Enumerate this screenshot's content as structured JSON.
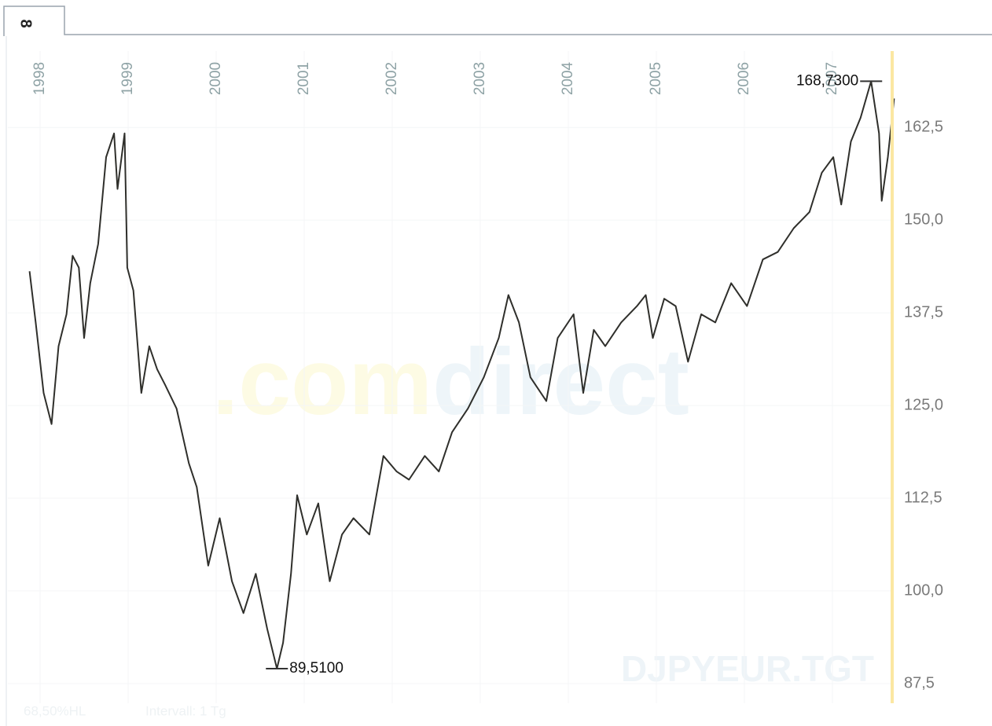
{
  "tab_label": "8",
  "chart_data": {
    "type": "line",
    "color": "#2f2f2b",
    "x": [
      1997.88,
      1997.95,
      1998.04,
      1998.13,
      1998.21,
      1998.3,
      1998.37,
      1998.44,
      1998.5,
      1998.57,
      1998.66,
      1998.75,
      1998.84,
      1998.88,
      1998.96,
      1998.99,
      1999.06,
      1999.15,
      1999.24,
      1999.33,
      1999.42,
      1999.55,
      1999.69,
      1999.78,
      1999.91,
      2000.04,
      2000.18,
      2000.31,
      2000.45,
      2000.58,
      2000.69,
      2000.76,
      2000.85,
      2000.92,
      2001.03,
      2001.16,
      2001.29,
      2001.43,
      2001.56,
      2001.74,
      2001.9,
      2002.05,
      2002.19,
      2002.37,
      2002.53,
      2002.68,
      2002.86,
      2003.04,
      2003.21,
      2003.32,
      2003.44,
      2003.57,
      2003.75,
      2003.88,
      2004.06,
      2004.17,
      2004.29,
      2004.42,
      2004.6,
      2004.78,
      2004.88,
      2004.96,
      2005.09,
      2005.22,
      2005.36,
      2005.51,
      2005.67,
      2005.85,
      2006.03,
      2006.21,
      2006.38,
      2006.56,
      2006.74,
      2006.88,
      2007.01,
      2007.1,
      2007.21,
      2007.32,
      2007.44,
      2007.53,
      2007.56,
      2007.63,
      2007.7
    ],
    "values": [
      143.1,
      136.2,
      126.7,
      122.5,
      133.0,
      137.3,
      145.2,
      143.6,
      134.1,
      141.5,
      146.8,
      158.5,
      161.7,
      154.2,
      161.7,
      143.6,
      140.5,
      126.7,
      133.0,
      129.9,
      127.8,
      124.6,
      117.2,
      114.0,
      103.4,
      109.8,
      101.3,
      97.0,
      102.3,
      94.9,
      89.51,
      93.0,
      102.3,
      112.9,
      107.6,
      111.8,
      101.3,
      107.6,
      109.8,
      107.6,
      118.2,
      116.1,
      115.0,
      118.2,
      116.1,
      121.4,
      124.6,
      128.8,
      134.1,
      139.9,
      136.2,
      128.8,
      125.6,
      134.1,
      137.3,
      126.7,
      135.2,
      133.0,
      136.2,
      138.4,
      139.9,
      134.1,
      139.4,
      138.4,
      130.9,
      137.3,
      136.2,
      141.5,
      138.4,
      144.7,
      145.7,
      148.9,
      151.1,
      156.4,
      158.5,
      152.1,
      160.6,
      163.8,
      168.73,
      161.7,
      152.6,
      158.5,
      166.4
    ],
    "xlim": [
      1997.634,
      2007.679
    ],
    "xticks": [
      1998,
      1999,
      2000,
      2001,
      2002,
      2003,
      2004,
      2005,
      2006,
      2007
    ],
    "ylim": [
      84.85,
      172.8
    ],
    "yticks": [
      {
        "value": 87.5,
        "label": "87,5"
      },
      {
        "value": 100,
        "label": "100,0"
      },
      {
        "value": 112.5,
        "label": "112,5"
      },
      {
        "value": 125,
        "label": "125,0"
      },
      {
        "value": 137.5,
        "label": "137,5"
      },
      {
        "value": 150,
        "label": "150,0"
      },
      {
        "value": 162.5,
        "label": "162,5"
      }
    ],
    "grid": true,
    "annotations": [
      {
        "x": 2007.44,
        "value": 168.73,
        "label": "168,7300",
        "side": "left"
      },
      {
        "x": 2000.69,
        "value": 89.51,
        "label": "89,5100",
        "side": "right"
      }
    ],
    "watermark": [
      ".com",
      "direct"
    ],
    "symbol": "DJPYEUR.TGT",
    "footer": [
      "68,50%HL",
      "Intervall: 1 Tg"
    ]
  }
}
